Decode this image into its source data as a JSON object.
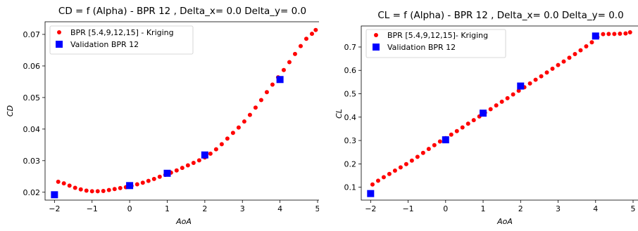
{
  "chart_data": [
    {
      "type": "scatter",
      "title": "CD = f (Alpha) - BPR 12 , Delta_x= 0.0 Delta_y= 0.0",
      "xlabel": "AoA",
      "ylabel": "CD",
      "xlim": [
        -2.25,
        5.15
      ],
      "ylim": [
        0.0175,
        0.074
      ],
      "xticks": [
        -2,
        -1,
        0,
        1,
        2,
        3,
        4,
        5
      ],
      "xtick_labels": [
        "−2",
        "−1",
        "0",
        "1",
        "2",
        "3",
        "4",
        "5"
      ],
      "yticks": [
        0.02,
        0.03,
        0.04,
        0.05,
        0.06,
        0.07
      ],
      "ytick_labels": [
        "0.02",
        "0.03",
        "0.04",
        "0.05",
        "0.06",
        "0.07"
      ],
      "legend_position": "top-left",
      "series": [
        {
          "name": "BPR [5.4,9,12,15] - Kriging",
          "marker": "circle",
          "color": "#ff0000",
          "x": [
            -1.9,
            -1.75,
            -1.6,
            -1.45,
            -1.3,
            -1.15,
            -1.0,
            -0.85,
            -0.7,
            -0.55,
            -0.4,
            -0.25,
            -0.1,
            0.05,
            0.2,
            0.35,
            0.5,
            0.65,
            0.8,
            0.95,
            1.1,
            1.25,
            1.4,
            1.55,
            1.7,
            1.85,
            2.0,
            2.15,
            2.3,
            2.45,
            2.6,
            2.75,
            2.9,
            3.05,
            3.2,
            3.35,
            3.5,
            3.65,
            3.8,
            3.95,
            4.1,
            4.25,
            4.4,
            4.55,
            4.7,
            4.85,
            4.95
          ],
          "y": [
            0.0233,
            0.0228,
            0.0221,
            0.0214,
            0.0209,
            0.0205,
            0.0203,
            0.0203,
            0.0204,
            0.0207,
            0.021,
            0.0213,
            0.0216,
            0.022,
            0.0225,
            0.023,
            0.0236,
            0.0242,
            0.0249,
            0.0255,
            0.0262,
            0.0269,
            0.0277,
            0.0285,
            0.0293,
            0.0301,
            0.031,
            0.0322,
            0.0336,
            0.0352,
            0.037,
            0.0388,
            0.0405,
            0.0424,
            0.0445,
            0.0468,
            0.0492,
            0.0517,
            0.0541,
            0.0564,
            0.0587,
            0.0612,
            0.0638,
            0.0663,
            0.0686,
            0.0702,
            0.0714
          ]
        },
        {
          "name": "Validation BPR 12",
          "marker": "square",
          "color": "#0000ff",
          "x": [
            -2,
            0,
            1,
            2,
            4
          ],
          "y": [
            0.0192,
            0.0221,
            0.026,
            0.0318,
            0.0557
          ]
        }
      ]
    },
    {
      "type": "scatter",
      "title": "CL = f (Alpha) - BPR 12 , Delta_x= 0.0 Delta_y= 0.0",
      "xlabel": "AoA",
      "ylabel": "CL",
      "xlim": [
        -2.25,
        5.15
      ],
      "ylim": [
        0.045,
        0.79
      ],
      "xticks": [
        -2,
        -1,
        0,
        1,
        2,
        3,
        4,
        5
      ],
      "xtick_labels": [
        "−2",
        "−1",
        "0",
        "1",
        "2",
        "3",
        "4",
        "5"
      ],
      "yticks": [
        0.1,
        0.2,
        0.3,
        0.4,
        0.5,
        0.6,
        0.7
      ],
      "ytick_labels": [
        "0.1",
        "0.2",
        "0.3",
        "0.4",
        "0.5",
        "0.6",
        "0.7"
      ],
      "legend_position": "top-left",
      "series": [
        {
          "name": "BPR [5.4,9,12,15]- Kriging",
          "marker": "circle",
          "color": "#ff0000",
          "x": [
            -1.95,
            -1.8,
            -1.65,
            -1.5,
            -1.35,
            -1.2,
            -1.05,
            -0.9,
            -0.75,
            -0.6,
            -0.45,
            -0.3,
            -0.15,
            0.0,
            0.15,
            0.3,
            0.45,
            0.6,
            0.75,
            0.9,
            1.05,
            1.2,
            1.35,
            1.5,
            1.65,
            1.8,
            1.95,
            2.1,
            2.25,
            2.4,
            2.55,
            2.7,
            2.85,
            3.0,
            3.15,
            3.3,
            3.45,
            3.6,
            3.75,
            3.9,
            4.05,
            4.2,
            4.35,
            4.5,
            4.65,
            4.8,
            4.92
          ],
          "y": [
            0.112,
            0.128,
            0.143,
            0.157,
            0.171,
            0.185,
            0.199,
            0.214,
            0.23,
            0.247,
            0.264,
            0.28,
            0.296,
            0.31,
            0.325,
            0.34,
            0.356,
            0.372,
            0.387,
            0.403,
            0.419,
            0.434,
            0.45,
            0.466,
            0.481,
            0.497,
            0.513,
            0.528,
            0.544,
            0.56,
            0.575,
            0.591,
            0.607,
            0.623,
            0.638,
            0.654,
            0.67,
            0.686,
            0.703,
            0.72,
            0.742,
            0.755,
            0.756,
            0.756,
            0.757,
            0.758,
            0.763
          ]
        },
        {
          "name": "Validation BPR 12",
          "marker": "square",
          "color": "#0000ff",
          "x": [
            -2,
            0,
            1,
            2,
            4
          ],
          "y": [
            0.073,
            0.303,
            0.417,
            0.533,
            0.747
          ]
        }
      ]
    }
  ]
}
